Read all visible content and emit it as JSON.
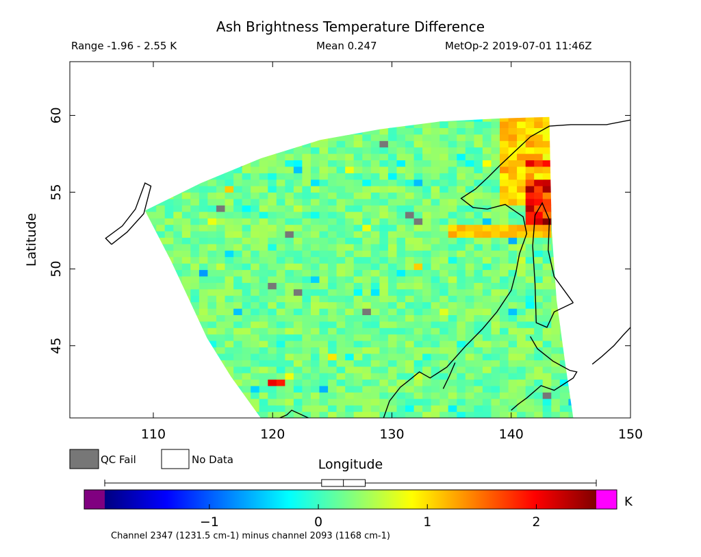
{
  "header": {
    "title": "Ash Brightness Temperature Difference",
    "range_text": "Range -1.96 - 2.55 K",
    "mean_text": "Mean 0.247",
    "platform_text": "MetOp-2 2019-07-01 11:46Z"
  },
  "legend": {
    "qc_fail": "QC Fail",
    "no_data": "No Data",
    "qc_fail_color": "#777777",
    "no_data_color": "#ffffff"
  },
  "colorbar": {
    "unit": "K",
    "caption": "Channel 2347 (1231.5 cm-1) minus channel 2093 (1168 cm-1)",
    "range": [
      -1.96,
      2.55
    ],
    "ticks": [
      -1,
      0,
      1,
      2
    ],
    "tick_labels": [
      "−1",
      "0",
      "1",
      "2"
    ],
    "under_color": "#800080",
    "over_color": "#ff00ff",
    "boxplot": {
      "min": -1.96,
      "q1": 0.03,
      "median": 0.23,
      "q3": 0.43,
      "max": 2.55
    }
  },
  "chart_data": {
    "type": "heatmap",
    "title": "Ash Brightness Temperature Difference",
    "xlabel": "Longitude",
    "ylabel": "Latitude",
    "xlim": [
      103,
      150
    ],
    "ylim": [
      40.3,
      63.5
    ],
    "x_ticks": [
      110,
      120,
      130,
      140,
      150
    ],
    "y_ticks": [
      45,
      50,
      55,
      60
    ],
    "grid": false,
    "value_range": [
      -1.96,
      2.55
    ],
    "mean": 0.247,
    "unit": "K",
    "colormap": [
      "#000080",
      "#0000ff",
      "#0080ff",
      "#00ffff",
      "#80ff80",
      "#ffff00",
      "#ff8000",
      "#ff0000",
      "#800000"
    ],
    "swath_boundary": [
      [
        109.3,
        53.8
      ],
      [
        114,
        55.6
      ],
      [
        119,
        57.2
      ],
      [
        124,
        58.4
      ],
      [
        129,
        59.1
      ],
      [
        134,
        59.6
      ],
      [
        139,
        59.8
      ],
      [
        143.2,
        59.9
      ],
      [
        143.3,
        56
      ],
      [
        143.4,
        52.5
      ],
      [
        143.8,
        48
      ],
      [
        144.5,
        44
      ],
      [
        145.2,
        40.3
      ],
      [
        119,
        40.3
      ],
      [
        116.5,
        43
      ],
      [
        114.5,
        45.5
      ],
      [
        113,
        48
      ],
      [
        111.5,
        50.5
      ],
      [
        110.3,
        52.3
      ]
    ],
    "features": [
      {
        "name": "ash plume core",
        "lon_range": [
          141,
          143.3
        ],
        "lat_range": [
          52.5,
          55.5
        ],
        "value_max": 2.55
      },
      {
        "name": "ash plume band",
        "lon_range": [
          134,
          143
        ],
        "lat_range": [
          51.8,
          52.6
        ],
        "value_approx": 1.2
      },
      {
        "name": "ash streak",
        "lon_range": [
          140.5,
          143
        ],
        "lat_range": [
          56.5,
          56.8
        ],
        "value_approx": 2.0
      },
      {
        "name": "ash streak",
        "lon_range": [
          119,
          120.5
        ],
        "lat_range": [
          42.4,
          42.8
        ],
        "value_approx": 1.9
      }
    ]
  }
}
